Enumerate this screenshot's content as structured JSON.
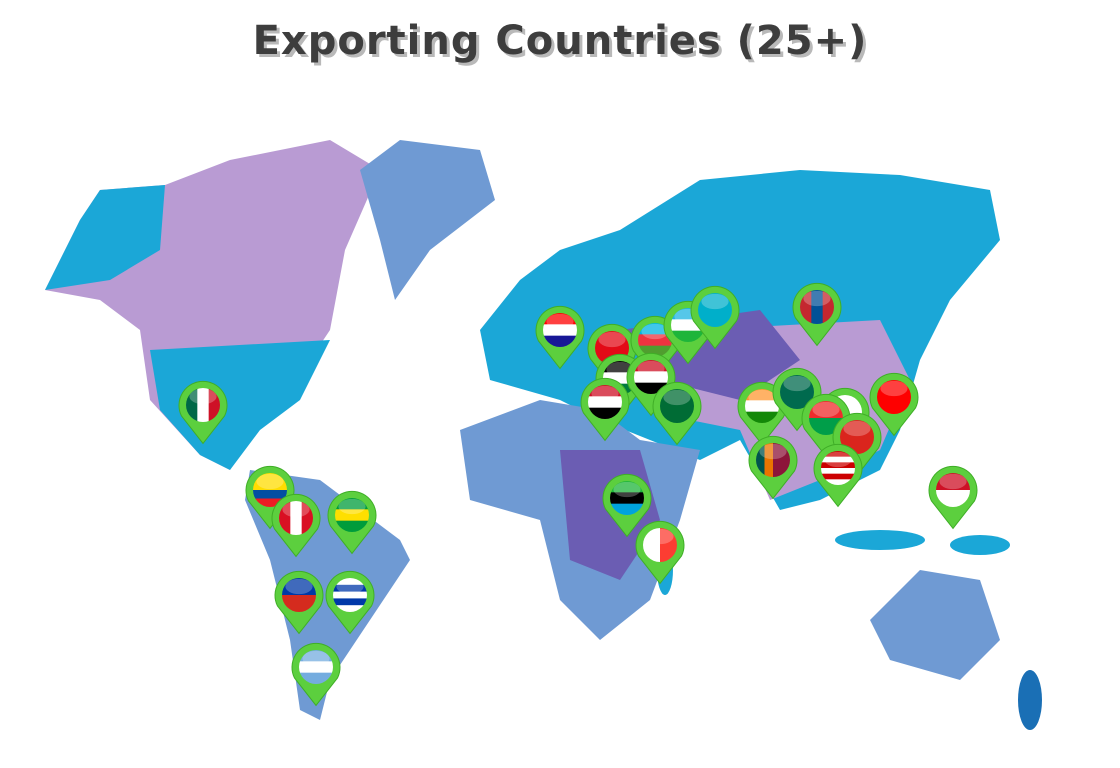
{
  "title": "Exporting Countries (25+)",
  "colors": {
    "pin": "#5ccf3e",
    "pin_dark": "#3fae27",
    "land_cyan": "#1ba7d7",
    "land_lilac": "#b99bd3",
    "land_blue": "#6f9ad3",
    "land_violet": "#6b5db3"
  },
  "pins": [
    {
      "icon": "flag-mexico-icon",
      "dir": "v",
      "colors": [
        "#006847",
        "#ffffff",
        "#ce1126"
      ]
    },
    {
      "icon": "flag-ecuador-icon",
      "dir": "h",
      "colors": [
        "#ffdd00",
        "#ffdd00",
        "#034ea2",
        "#ed1c24"
      ]
    },
    {
      "icon": "flag-peru-icon",
      "dir": "v",
      "colors": [
        "#d91023",
        "#ffffff",
        "#d91023"
      ]
    },
    {
      "icon": "flag-brazil-icon",
      "dir": "h",
      "colors": [
        "#009c3b",
        "#ffdf00",
        "#009c3b"
      ]
    },
    {
      "icon": "flag-chile-icon",
      "dir": "h",
      "colors": [
        "#0039a6",
        "#d52b1e"
      ]
    },
    {
      "icon": "flag-uruguay-icon",
      "dir": "h",
      "colors": [
        "#ffffff",
        "#0038a8",
        "#ffffff",
        "#0038a8",
        "#ffffff"
      ]
    },
    {
      "icon": "flag-argentina-icon",
      "dir": "h",
      "colors": [
        "#74acdf",
        "#ffffff",
        "#74acdf"
      ]
    },
    {
      "icon": "flag-croatia-icon",
      "dir": "h",
      "colors": [
        "#ff0000",
        "#ffffff",
        "#171796"
      ]
    },
    {
      "icon": "flag-turkey-icon",
      "dir": "h",
      "colors": [
        "#e30a17"
      ]
    },
    {
      "icon": "flag-azerbaijan-icon",
      "dir": "h",
      "colors": [
        "#00b5e2",
        "#ef3340",
        "#509e2f"
      ]
    },
    {
      "icon": "flag-uzbekistan-icon",
      "dir": "h",
      "colors": [
        "#1eb5e2",
        "#ffffff",
        "#1eb53a"
      ]
    },
    {
      "icon": "flag-kazakhstan-icon",
      "dir": "h",
      "colors": [
        "#00afca"
      ]
    },
    {
      "icon": "flag-mongolia-icon",
      "dir": "v",
      "colors": [
        "#c4272f",
        "#015197",
        "#c4272f"
      ]
    },
    {
      "icon": "flag-jordan-icon",
      "dir": "h",
      "colors": [
        "#000000",
        "#ffffff",
        "#007a3d"
      ]
    },
    {
      "icon": "flag-egypt-icon",
      "dir": "h",
      "colors": [
        "#ce1126",
        "#ffffff",
        "#000000"
      ]
    },
    {
      "icon": "flag-iraq-icon",
      "dir": "h",
      "colors": [
        "#ce1126",
        "#ffffff",
        "#000000"
      ]
    },
    {
      "icon": "flag-saudi-arabia-icon",
      "dir": "h",
      "colors": [
        "#006c35"
      ]
    },
    {
      "icon": "flag-india-icon",
      "dir": "h",
      "colors": [
        "#ff9933",
        "#ffffff",
        "#138808"
      ]
    },
    {
      "icon": "flag-bangladesh-icon",
      "dir": "h",
      "colors": [
        "#006a4e"
      ]
    },
    {
      "icon": "flag-unknown-icon",
      "dir": "h",
      "colors": [
        "#ffffff"
      ]
    },
    {
      "icon": "flag-burkina-faso-icon",
      "dir": "h",
      "colors": [
        "#ef2b2d",
        "#009e49"
      ]
    },
    {
      "icon": "flag-vietnam-icon",
      "dir": "h",
      "colors": [
        "#da251d"
      ]
    },
    {
      "icon": "flag-sri-lanka-icon",
      "dir": "v",
      "colors": [
        "#00534e",
        "#eb7400",
        "#8d153a",
        "#8d153a"
      ]
    },
    {
      "icon": "flag-malaysia-icon",
      "dir": "h",
      "colors": [
        "#cc0001",
        "#ffffff",
        "#cc0001",
        "#ffffff",
        "#cc0001",
        "#ffffff"
      ]
    },
    {
      "icon": "flag-taiwan-icon",
      "dir": "h",
      "colors": [
        "#fe0000"
      ]
    },
    {
      "icon": "flag-tanzania-icon",
      "dir": "h",
      "colors": [
        "#1eb53a",
        "#000000",
        "#00a3dd"
      ]
    },
    {
      "icon": "flag-madagascar-icon",
      "dir": "v",
      "colors": [
        "#ffffff",
        "#fc3d32"
      ]
    },
    {
      "icon": "flag-indonesia-icon",
      "dir": "h",
      "colors": [
        "#ce1126",
        "#ffffff"
      ]
    }
  ]
}
